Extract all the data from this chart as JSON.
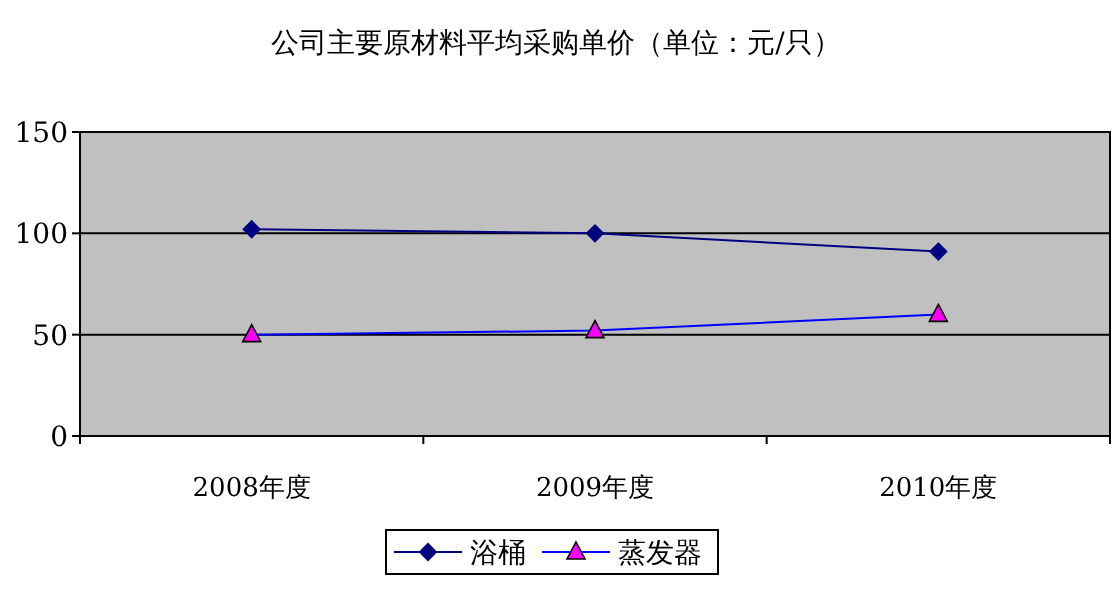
{
  "chart_data": {
    "type": "line",
    "title": "公司主要原材料平均采购单价（单位：元/只）",
    "categories": [
      "2008年度",
      "2009年度",
      "2010年度"
    ],
    "series": [
      {
        "name": "浴桶",
        "color": "#000080",
        "marker": "diamond",
        "values": [
          102,
          100,
          91
        ]
      },
      {
        "name": "蒸发器",
        "color": "#0000ff",
        "marker": "triangle",
        "colors": [
          "#ff00ff",
          "#ff00ff",
          "#ff00ff"
        ],
        "values": [
          50,
          52,
          60
        ]
      }
    ],
    "ylim": [
      0,
      150
    ],
    "yticks": [
      0,
      50,
      100,
      150
    ],
    "grid": "y",
    "legend": "bottom"
  }
}
